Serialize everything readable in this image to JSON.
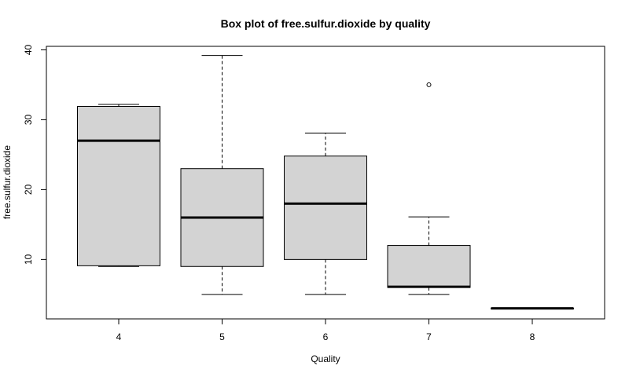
{
  "chart_data": {
    "type": "box",
    "title": "Box plot of free.sulfur.dioxide by quality",
    "xlabel": "Quality",
    "ylabel": "free.sulfur.dioxide",
    "ylim": [
      1.5,
      40.5
    ],
    "yticks": [
      10,
      20,
      30,
      40
    ],
    "categories": [
      "4",
      "5",
      "6",
      "7",
      "8"
    ],
    "boxes": [
      {
        "category": "4",
        "whisker_low": 9,
        "q1": 9.1,
        "median": 27,
        "q3": 31.9,
        "whisker_high": 32.2,
        "outliers": []
      },
      {
        "category": "5",
        "whisker_low": 5,
        "q1": 9,
        "median": 16,
        "q3": 23,
        "whisker_high": 39.2,
        "outliers": []
      },
      {
        "category": "6",
        "whisker_low": 5,
        "q1": 10,
        "median": 18,
        "q3": 24.8,
        "whisker_high": 28.1,
        "outliers": []
      },
      {
        "category": "7",
        "whisker_low": 5,
        "q1": 6,
        "median": 6.1,
        "q3": 12,
        "whisker_high": 16.1,
        "outliers": [
          35
        ]
      },
      {
        "category": "8",
        "whisker_low": 3,
        "q1": 3,
        "median": 3,
        "q3": 3,
        "whisker_high": 3,
        "outliers": []
      }
    ],
    "box_fill": "#d3d3d3",
    "grid": false,
    "legend": "none"
  }
}
